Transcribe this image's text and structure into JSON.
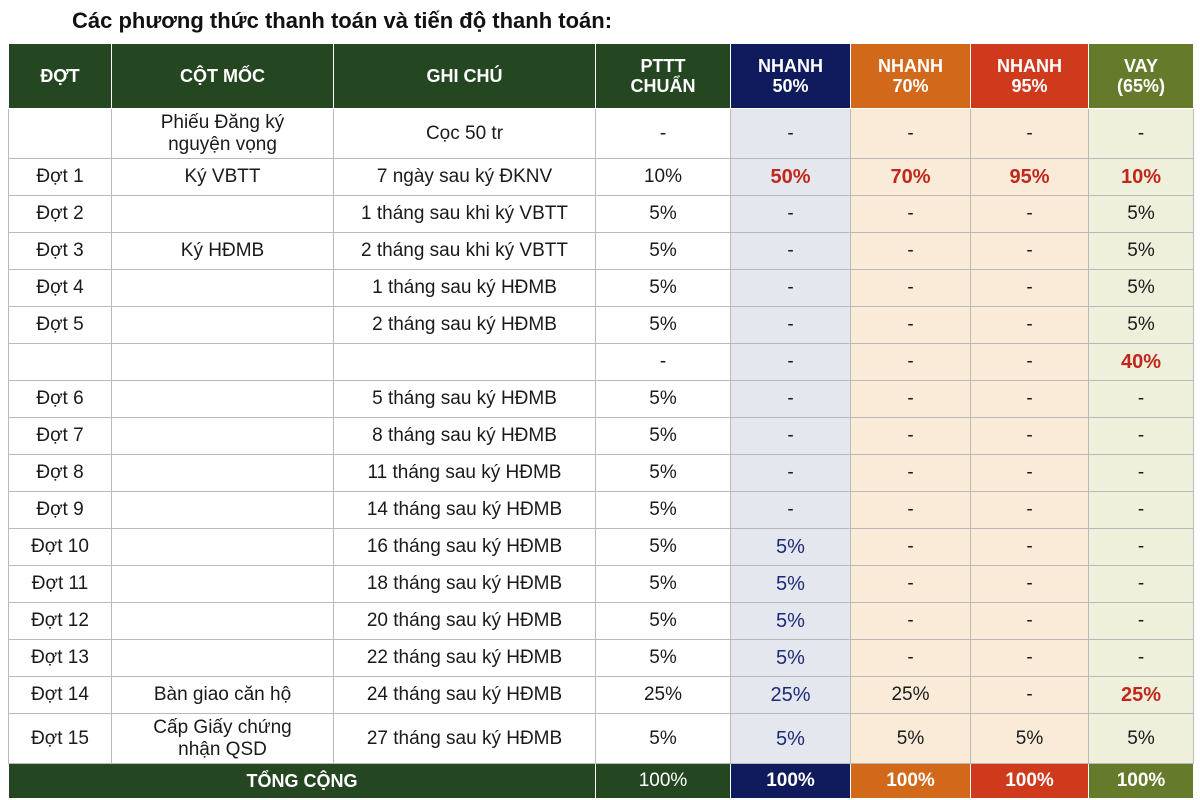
{
  "title": "Các phương thức thanh toán và tiến độ thanh toán:",
  "headers": {
    "dot": "ĐỢT",
    "cot_moc": "CỘT MỐC",
    "ghi_chu": "GHI CHÚ",
    "pttt_chuan": [
      "PTTT",
      "CHUẨN"
    ],
    "nhanh50": [
      "NHANH",
      "50%"
    ],
    "nhanh70": [
      "NHANH",
      "70%"
    ],
    "nhanh95": [
      "NHANH",
      "95%"
    ],
    "vay": [
      "VAY",
      "(65%)"
    ]
  },
  "colors": {
    "header_green": "#244621",
    "nhanh50": "#0f1b5c",
    "nhanh70": "#d2691a",
    "nhanh95": "#cf3a1c",
    "vay": "#657b2b",
    "highlight_red": "#c0281c",
    "highlight_blue": "#1c2b78"
  },
  "rows": [
    {
      "dot": "",
      "cot_moc": [
        "Phiếu Đăng ký",
        "nguyện vọng"
      ],
      "ghi_chu": "Cọc 50  tr",
      "pttt": "-",
      "n50": "-",
      "n70": "-",
      "n95": "-",
      "vay": "-"
    },
    {
      "dot": "Đợt 1",
      "cot_moc": "Ký VBTT",
      "ghi_chu": "7 ngày sau ký ĐKNV",
      "pttt": "10%",
      "n50": "50%",
      "n70": "70%",
      "n95": "95%",
      "vay": "10%"
    },
    {
      "dot": "Đợt 2",
      "cot_moc": "",
      "ghi_chu": "1 tháng sau khi ký VBTT",
      "pttt": "5%",
      "n50": "-",
      "n70": "-",
      "n95": "-",
      "vay": "5%"
    },
    {
      "dot": "Đợt 3",
      "cot_moc": "Ký HĐMB",
      "ghi_chu": "2 tháng sau khi ký VBTT",
      "pttt": "5%",
      "n50": "-",
      "n70": "-",
      "n95": "-",
      "vay": "5%"
    },
    {
      "dot": "Đợt 4",
      "cot_moc": "",
      "ghi_chu": "1 tháng sau ký HĐMB",
      "pttt": "5%",
      "n50": "-",
      "n70": "-",
      "n95": "-",
      "vay": "5%"
    },
    {
      "dot": "Đợt 5",
      "cot_moc": "",
      "ghi_chu": "2 tháng sau ký HĐMB",
      "pttt": "5%",
      "n50": "-",
      "n70": "-",
      "n95": "-",
      "vay": "5%"
    },
    {
      "dot": "",
      "cot_moc": "",
      "ghi_chu": "",
      "pttt": "-",
      "n50": "-",
      "n70": "-",
      "n95": "-",
      "vay": "40%"
    },
    {
      "dot": "Đợt 6",
      "cot_moc": "",
      "ghi_chu": "5 tháng sau ký HĐMB",
      "pttt": "5%",
      "n50": "-",
      "n70": "-",
      "n95": "-",
      "vay": "-"
    },
    {
      "dot": "Đợt 7",
      "cot_moc": "",
      "ghi_chu": "8 tháng sau ký HĐMB",
      "pttt": "5%",
      "n50": "-",
      "n70": "-",
      "n95": "-",
      "vay": "-"
    },
    {
      "dot": "Đợt 8",
      "cot_moc": "",
      "ghi_chu": "11 tháng sau ký HĐMB",
      "pttt": "5%",
      "n50": "-",
      "n70": "-",
      "n95": "-",
      "vay": "-"
    },
    {
      "dot": "Đợt 9",
      "cot_moc": "",
      "ghi_chu": "14 tháng sau ký HĐMB",
      "pttt": "5%",
      "n50": "-",
      "n70": "-",
      "n95": "-",
      "vay": "-"
    },
    {
      "dot": "Đợt 10",
      "cot_moc": "",
      "ghi_chu": "16 tháng sau ký HĐMB",
      "pttt": "5%",
      "n50": "5%",
      "n70": "-",
      "n95": "-",
      "vay": "-"
    },
    {
      "dot": "Đợt 11",
      "cot_moc": "",
      "ghi_chu": "18 tháng sau ký HĐMB",
      "pttt": "5%",
      "n50": "5%",
      "n70": "-",
      "n95": "-",
      "vay": "-"
    },
    {
      "dot": "Đợt 12",
      "cot_moc": "",
      "ghi_chu": "20 tháng sau ký HĐMB",
      "pttt": "5%",
      "n50": "5%",
      "n70": "-",
      "n95": "-",
      "vay": "-"
    },
    {
      "dot": "Đợt 13",
      "cot_moc": "",
      "ghi_chu": "22 tháng sau ký HĐMB",
      "pttt": "5%",
      "n50": "5%",
      "n70": "-",
      "n95": "-",
      "vay": "-"
    },
    {
      "dot": "Đợt 14",
      "cot_moc": "Bàn giao căn hộ",
      "ghi_chu": "24 tháng sau ký HĐMB",
      "pttt": "25%",
      "n50": "25%",
      "n70": "25%",
      "n95": "-",
      "vay": "25%"
    },
    {
      "dot": "Đợt 15",
      "cot_moc": [
        "Cấp Giấy chứng",
        "nhận QSD"
      ],
      "ghi_chu": "27 tháng sau ký HĐMB",
      "pttt": "5%",
      "n50": "5%",
      "n70": "5%",
      "n95": "5%",
      "vay": "5%"
    }
  ],
  "totals": {
    "label": "TỔNG CỘNG",
    "pttt": "100%",
    "n50": "100%",
    "n70": "100%",
    "n95": "100%",
    "vay": "100%"
  }
}
